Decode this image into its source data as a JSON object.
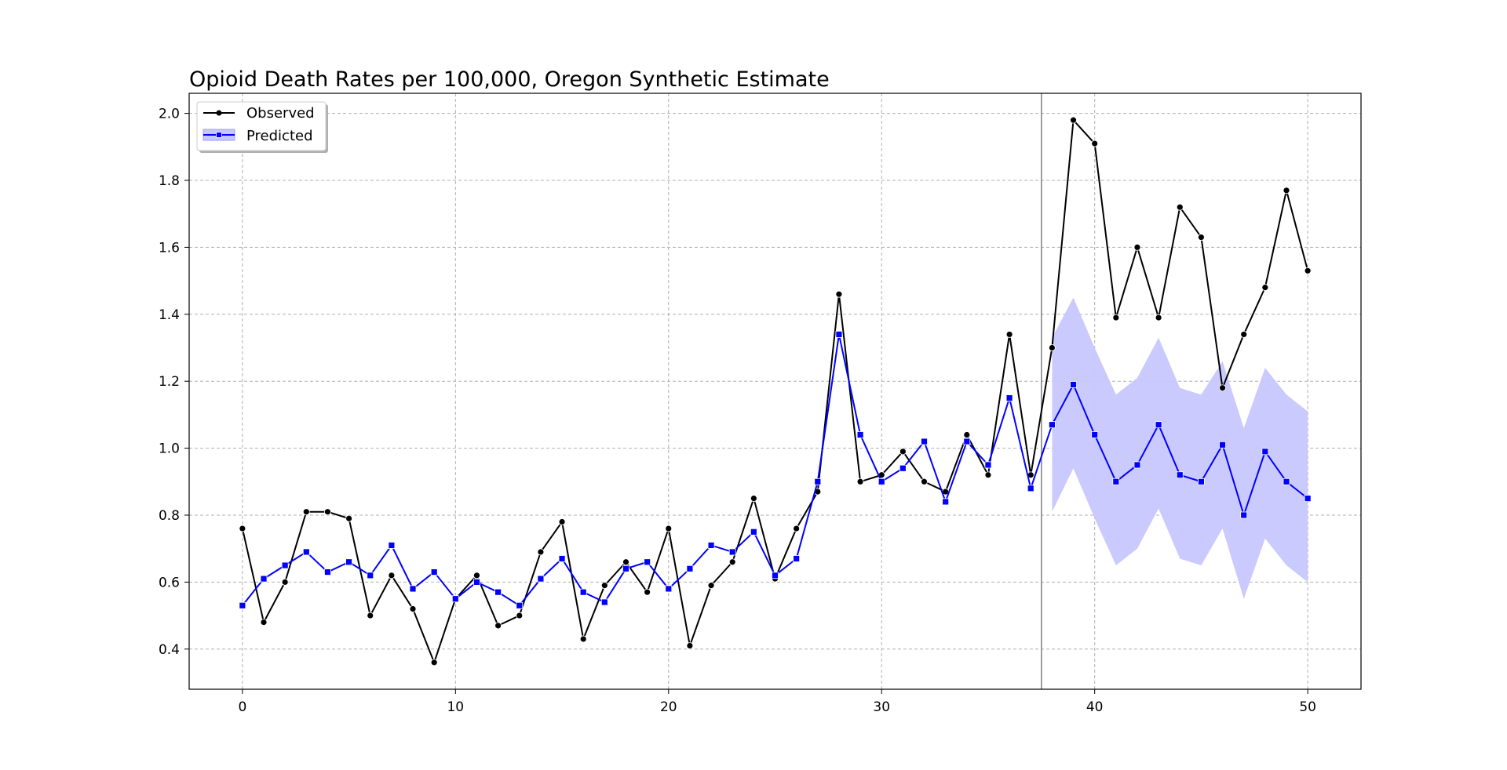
{
  "chart_data": {
    "type": "line",
    "title": "Opioid Death Rates per 100,000, Oregon Synthetic Estimate",
    "xlabel": "",
    "ylabel": "",
    "xlim": [
      -2.5,
      52.5
    ],
    "ylim": [
      0.28,
      2.06
    ],
    "xticks": [
      0,
      10,
      20,
      30,
      40,
      50
    ],
    "xtick_labels": [
      "0",
      "10",
      "20",
      "30",
      "40",
      "50"
    ],
    "yticks": [
      0.4,
      0.6,
      0.8,
      1.0,
      1.2,
      1.4,
      1.6,
      1.8,
      2.0
    ],
    "ytick_labels": [
      "0.4",
      "0.6",
      "0.8",
      "1.0",
      "1.2",
      "1.4",
      "1.6",
      "1.8",
      "2.0"
    ],
    "grid": true,
    "legend_position": "top-left",
    "intervention_line_x": 37.5,
    "series": [
      {
        "name": "Observed",
        "color": "#000000",
        "marker": "circle",
        "x": [
          0,
          1,
          2,
          3,
          4,
          5,
          6,
          7,
          8,
          9,
          10,
          11,
          12,
          13,
          14,
          15,
          16,
          17,
          18,
          19,
          20,
          21,
          22,
          23,
          24,
          25,
          26,
          27,
          28,
          29,
          30,
          31,
          32,
          33,
          34,
          35,
          36,
          37,
          38,
          39,
          40,
          41,
          42,
          43,
          44,
          45,
          46,
          47,
          48,
          49,
          50
        ],
        "values": [
          0.76,
          0.48,
          0.6,
          0.81,
          0.81,
          0.79,
          0.5,
          0.62,
          0.52,
          0.36,
          0.55,
          0.62,
          0.47,
          0.5,
          0.69,
          0.78,
          0.43,
          0.59,
          0.66,
          0.57,
          0.76,
          0.41,
          0.59,
          0.66,
          0.85,
          0.61,
          0.76,
          0.87,
          1.46,
          0.9,
          0.92,
          0.99,
          0.9,
          0.87,
          1.04,
          0.92,
          1.34,
          0.92,
          1.3,
          1.98,
          1.91,
          1.39,
          1.6,
          1.39,
          1.72,
          1.63,
          1.18,
          1.34,
          1.48,
          1.77,
          1.53
        ]
      },
      {
        "name": "Predicted",
        "color": "#0000ff",
        "marker": "square",
        "x": [
          0,
          1,
          2,
          3,
          4,
          5,
          6,
          7,
          8,
          9,
          10,
          11,
          12,
          13,
          14,
          15,
          16,
          17,
          18,
          19,
          20,
          21,
          22,
          23,
          24,
          25,
          26,
          27,
          28,
          29,
          30,
          31,
          32,
          33,
          34,
          35,
          36,
          37,
          38,
          39,
          40,
          41,
          42,
          43,
          44,
          45,
          46,
          47,
          48,
          49,
          50
        ],
        "values": [
          0.53,
          0.61,
          0.65,
          0.69,
          0.63,
          0.66,
          0.62,
          0.71,
          0.58,
          0.63,
          0.55,
          0.6,
          0.57,
          0.53,
          0.61,
          0.67,
          0.57,
          0.54,
          0.64,
          0.66,
          0.58,
          0.64,
          0.71,
          0.69,
          0.75,
          0.62,
          0.67,
          0.9,
          1.34,
          1.04,
          0.9,
          0.94,
          1.02,
          0.84,
          1.02,
          0.95,
          1.15,
          0.88,
          1.07,
          1.19,
          1.04,
          0.9,
          0.95,
          1.07,
          0.92,
          0.9,
          1.01,
          0.8,
          0.99,
          0.9,
          0.85
        ]
      }
    ],
    "interval": {
      "name": "Predicted",
      "color": "#c7c7ff",
      "x": [
        38,
        39,
        40,
        41,
        42,
        43,
        44,
        45,
        46,
        47,
        48,
        49,
        50
      ],
      "lower": [
        0.81,
        0.94,
        0.79,
        0.65,
        0.7,
        0.82,
        0.67,
        0.65,
        0.76,
        0.55,
        0.73,
        0.65,
        0.6
      ],
      "upper": [
        1.33,
        1.45,
        1.3,
        1.16,
        1.21,
        1.33,
        1.18,
        1.16,
        1.26,
        1.06,
        1.24,
        1.16,
        1.11
      ]
    }
  }
}
